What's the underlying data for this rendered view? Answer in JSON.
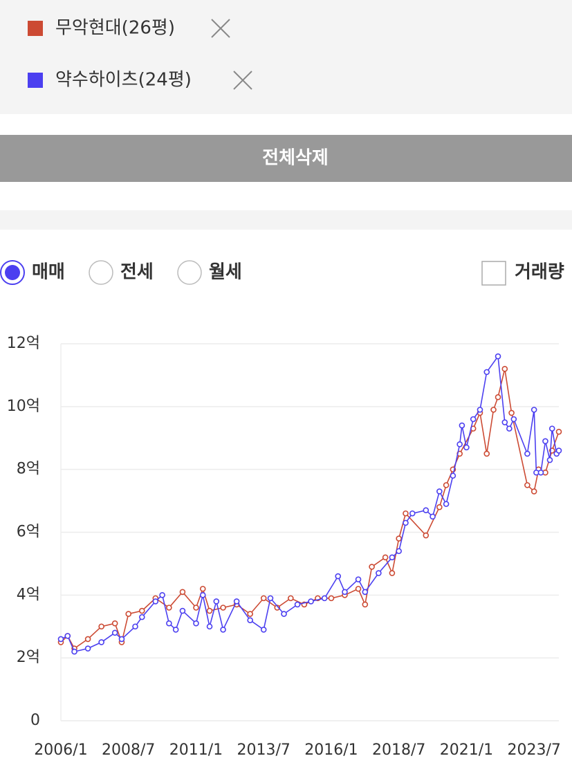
{
  "remove_all_button": "전체삭제",
  "trade_types": [
    "매매",
    "전세",
    "월세"
  ],
  "volume_checkbox": "거래량",
  "chart_data": {
    "type": "line",
    "xlim": [
      "2006/1",
      "2024/6"
    ],
    "xticks": [
      "2006/1",
      "2008/7",
      "2011/1",
      "2013/7",
      "2016/1",
      "2018/7",
      "2021/1",
      "2023/7"
    ],
    "ylim": [
      0,
      12
    ],
    "yticks": [
      0,
      {
        "value": 2,
        "label": "2억"
      },
      {
        "value": 4,
        "label": "4억"
      },
      {
        "value": 6,
        "label": "6억"
      },
      {
        "value": 8,
        "label": "8억"
      },
      {
        "value": 10,
        "label": "10억"
      },
      {
        "value": 12,
        "label": "12억"
      }
    ],
    "grid": true,
    "series": [
      {
        "name": "무악현대(26평)",
        "color": "#cc4a33",
        "x": [
          "2006/1",
          "2006/4",
          "2006/7",
          "2007/1",
          "2007/7",
          "2008/1",
          "2008/4",
          "2008/7",
          "2009/1",
          "2009/7",
          "2010/1",
          "2010/7",
          "2011/1",
          "2011/4",
          "2011/7",
          "2012/1",
          "2012/7",
          "2013/1",
          "2013/7",
          "2014/1",
          "2014/7",
          "2015/1",
          "2015/7",
          "2016/1",
          "2016/7",
          "2017/1",
          "2017/4",
          "2017/7",
          "2018/1",
          "2018/4",
          "2018/7",
          "2018/10",
          "2019/7",
          "2020/1",
          "2020/4",
          "2020/7",
          "2020/10",
          "2021/4",
          "2021/7",
          "2021/10",
          "2022/1",
          "2022/3",
          "2022/6",
          "2022/9",
          "2023/4",
          "2023/7",
          "2023/9",
          "2023/12",
          "2024/3",
          "2024/6"
        ],
        "values": [
          2.5,
          2.7,
          2.3,
          2.6,
          3.0,
          3.1,
          2.5,
          3.4,
          3.5,
          3.9,
          3.6,
          4.1,
          3.6,
          4.2,
          3.5,
          3.6,
          3.7,
          3.4,
          3.9,
          3.6,
          3.9,
          3.7,
          3.9,
          3.9,
          4.0,
          4.2,
          3.7,
          4.9,
          5.2,
          4.7,
          5.8,
          6.6,
          5.9,
          6.8,
          7.5,
          8.0,
          8.5,
          9.3,
          9.8,
          8.5,
          9.9,
          10.3,
          11.2,
          9.8,
          7.5,
          7.3,
          8.0,
          7.9,
          8.6,
          9.2
        ]
      },
      {
        "name": "약수하이츠(24평)",
        "color": "#4b3ff0",
        "x": [
          "2006/1",
          "2006/4",
          "2006/7",
          "2007/1",
          "2007/7",
          "2008/1",
          "2008/4",
          "2008/10",
          "2009/1",
          "2009/7",
          "2009/10",
          "2010/1",
          "2010/4",
          "2010/7",
          "2011/1",
          "2011/4",
          "2011/7",
          "2011/10",
          "2012/1",
          "2012/7",
          "2013/1",
          "2013/7",
          "2013/10",
          "2014/4",
          "2014/10",
          "2015/4",
          "2015/10",
          "2016/4",
          "2016/7",
          "2017/1",
          "2017/4",
          "2017/10",
          "2018/4",
          "2018/7",
          "2018/10",
          "2019/1",
          "2019/7",
          "2019/10",
          "2020/1",
          "2020/4",
          "2020/7",
          "2020/10",
          "2020/11",
          "2021/1",
          "2021/4",
          "2021/7",
          "2021/10",
          "2022/3",
          "2022/6",
          "2022/8",
          "2022/10",
          "2023/4",
          "2023/7",
          "2023/8",
          "2023/10",
          "2023/12",
          "2024/2",
          "2024/3",
          "2024/5",
          "2024/6"
        ],
        "values": [
          2.6,
          2.7,
          2.2,
          2.3,
          2.5,
          2.8,
          2.6,
          3.0,
          3.3,
          3.8,
          4.0,
          3.1,
          2.9,
          3.5,
          3.1,
          4.0,
          3.0,
          3.8,
          2.9,
          3.8,
          3.2,
          2.9,
          3.9,
          3.4,
          3.7,
          3.8,
          3.9,
          4.6,
          4.1,
          4.5,
          4.1,
          4.7,
          5.2,
          5.4,
          6.3,
          6.6,
          6.7,
          6.5,
          7.3,
          6.9,
          7.8,
          8.8,
          9.4,
          8.7,
          9.6,
          9.9,
          11.1,
          11.6,
          9.5,
          9.3,
          9.6,
          8.5,
          9.9,
          7.9,
          7.9,
          8.9,
          8.3,
          9.3,
          8.5,
          8.6
        ]
      }
    ]
  }
}
